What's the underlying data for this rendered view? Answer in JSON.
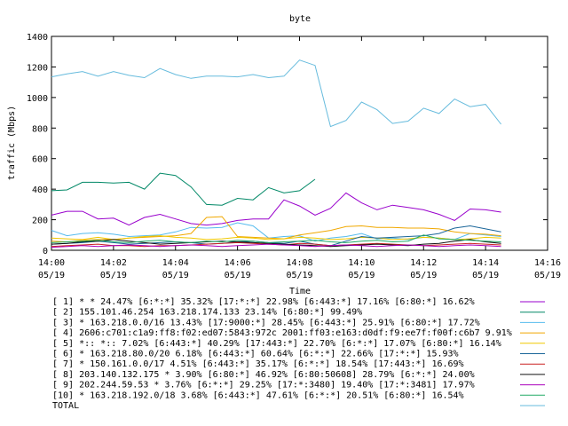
{
  "chart_data": {
    "type": "line",
    "title": "byte",
    "xlabel": "Time",
    "ylabel": "traffic (Mbps)",
    "ylim": [
      0,
      1400
    ],
    "xlim": [
      0,
      16
    ],
    "grid": false,
    "legend": "bottom",
    "yticks": [
      0,
      200,
      400,
      600,
      800,
      1000,
      1200,
      1400
    ],
    "xticks": [
      {
        "x": 0,
        "time": "14:00",
        "date": "05/19"
      },
      {
        "x": 2,
        "time": "14:02",
        "date": "05/19"
      },
      {
        "x": 4,
        "time": "14:04",
        "date": "05/19"
      },
      {
        "x": 6,
        "time": "14:06",
        "date": "05/19"
      },
      {
        "x": 8,
        "time": "14:08",
        "date": "05/19"
      },
      {
        "x": 10,
        "time": "14:10",
        "date": "05/19"
      },
      {
        "x": 12,
        "time": "14:12",
        "date": "05/19"
      },
      {
        "x": 14,
        "time": "14:14",
        "date": "05/19"
      },
      {
        "x": 16,
        "time": "14:16",
        "date": "05/19"
      }
    ],
    "x": [
      0,
      0.5,
      1,
      1.5,
      2,
      2.5,
      3,
      3.5,
      4,
      4.5,
      5,
      5.5,
      6,
      6.5,
      7,
      7.5,
      8,
      8.5,
      9,
      9.5,
      10,
      10.5,
      11,
      11.5,
      12,
      12.5,
      13,
      13.5,
      14,
      14.5
    ],
    "series": [
      {
        "name": "[ 1] * * 24.47% [6:*:*] 35.32% [17:*:*] 22.98% [6:443:*] 17.16% [6:80:*] 16.62%",
        "color": "#9900cc",
        "values": [
          230,
          255,
          255,
          205,
          210,
          165,
          215,
          235,
          205,
          175,
          165,
          175,
          195,
          205,
          205,
          330,
          290,
          230,
          275,
          375,
          310,
          265,
          295,
          280,
          265,
          235,
          195,
          270,
          265,
          250
        ]
      },
      {
        "name": "[ 2] 155.101.46.254 163.218.174.133 23.14% [6:80:*] 99.49%",
        "color": "#008866",
        "values": [
          390,
          395,
          445,
          445,
          440,
          445,
          400,
          505,
          490,
          415,
          300,
          295,
          340,
          330,
          410,
          375,
          390,
          465,
          null,
          null,
          null,
          null,
          null,
          null,
          null,
          null,
          null,
          null,
          null,
          null
        ]
      },
      {
        "name": "[ 3] * 163.218.0.0/16 13.43% [17:9000:*] 28.45% [6:443:*] 25.91% [6:80:*] 17.72%",
        "color": "#55bbee",
        "values": [
          130,
          95,
          110,
          115,
          105,
          90,
          95,
          100,
          120,
          150,
          145,
          150,
          180,
          160,
          80,
          90,
          95,
          60,
          80,
          90,
          110,
          75,
          80,
          70,
          85,
          80,
          70,
          110,
          100,
          90
        ]
      },
      {
        "name": "[ 4] 2606:c701:c1a9:ff8:f02:ed07:5843:972c 2001:ff03:e163:d0df:f9:ee7f:f00f:c6b7 9.91%",
        "color": "#f0a800",
        "values": [
          60,
          55,
          65,
          70,
          70,
          80,
          85,
          90,
          95,
          110,
          215,
          220,
          90,
          85,
          80,
          75,
          100,
          115,
          130,
          155,
          160,
          150,
          150,
          145,
          145,
          140,
          120,
          110,
          105,
          95
        ]
      },
      {
        "name": "[ 5] *:: *:: 7.02% [6:443:*] 40.29% [17:443:*] 22.70% [6:*:*] 17.07% [6:80:*] 16.14%",
        "color": "#f0c800",
        "values": [
          80,
          75,
          70,
          85,
          70,
          80,
          90,
          95,
          85,
          80,
          70,
          75,
          85,
          80,
          70,
          75,
          85,
          80,
          70,
          75,
          85,
          80,
          70,
          75,
          85,
          80,
          70,
          75,
          85,
          80
        ]
      },
      {
        "name": "[ 6] * 163.218.80.0/20 6.18% [6:443:*] 60.64% [6:*:*] 22.66% [17:*:*] 15.93%",
        "color": "#1a6699",
        "values": [
          40,
          45,
          50,
          60,
          50,
          40,
          45,
          50,
          55,
          50,
          40,
          45,
          55,
          60,
          50,
          45,
          60,
          40,
          30,
          60,
          90,
          80,
          85,
          90,
          95,
          110,
          145,
          160,
          140,
          120
        ]
      },
      {
        "name": "[ 7] * 150.161.0.0/17 4.51% [6:443:*] 35.17% [6:*:*] 18.54% [17:443:*] 16.69%",
        "color": "#cc2222",
        "values": [
          25,
          30,
          35,
          40,
          30,
          30,
          25,
          30,
          30,
          35,
          40,
          45,
          50,
          45,
          40,
          35,
          45,
          40,
          30,
          35,
          40,
          45,
          40,
          35,
          30,
          35,
          40,
          45,
          40,
          35
        ]
      },
      {
        "name": "[ 8] 203.140.132.175 * 3.90% [6:80:*] 46.92% [6:80:50608] 28.79% [6:*:*] 24.00%",
        "color": "#111111",
        "values": [
          40,
          45,
          55,
          60,
          70,
          60,
          50,
          40,
          45,
          50,
          55,
          60,
          55,
          50,
          45,
          40,
          35,
          30,
          25,
          30,
          35,
          40,
          35,
          30,
          40,
          45,
          60,
          70,
          55,
          45
        ]
      },
      {
        "name": "[ 9] 202.244.59.53 * 3.76% [6:*:*] 29.25% [17:*:3480] 19.40% [17:*:3481] 17.97%",
        "color": "#aa00bb",
        "values": [
          20,
          25,
          30,
          25,
          30,
          35,
          30,
          25,
          30,
          35,
          30,
          25,
          30,
          35,
          40,
          35,
          30,
          25,
          30,
          35,
          30,
          25,
          30,
          35,
          30,
          25,
          30,
          35,
          30,
          25
        ]
      },
      {
        "name": "[10] * 163.218.192.0/18 3.68% [6:443:*] 47.61% [6:*:*] 20.51% [6:80:*] 16.54%",
        "color": "#22aa66",
        "values": [
          50,
          55,
          60,
          65,
          55,
          50,
          60,
          65,
          55,
          50,
          60,
          55,
          65,
          60,
          50,
          55,
          60,
          65,
          55,
          50,
          60,
          65,
          55,
          60,
          100,
          75,
          70,
          65,
          60,
          55
        ]
      },
      {
        "name": "TOTAL",
        "color": "#66bbdd",
        "values": [
          1135,
          1155,
          1170,
          1140,
          1170,
          1145,
          1130,
          1190,
          1150,
          1125,
          1140,
          1140,
          1135,
          1150,
          1130,
          1140,
          1245,
          1210,
          810,
          850,
          970,
          920,
          830,
          845,
          930,
          895,
          990,
          940,
          955,
          825
        ]
      }
    ]
  }
}
